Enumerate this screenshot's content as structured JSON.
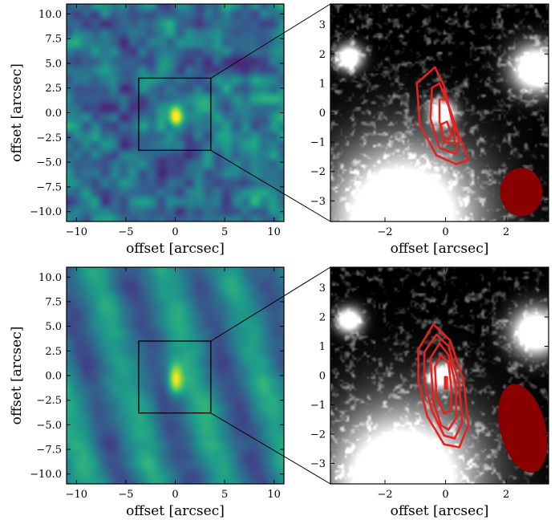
{
  "chart_data": [
    {
      "id": "top-left",
      "type": "heatmap",
      "colormap": "viridis",
      "pattern": "noise",
      "xlabel": "offset [arcsec]",
      "ylabel": "offset [arcsec]",
      "xlim": [
        -11,
        11
      ],
      "ylim": [
        -11,
        11
      ],
      "xticks": [
        -10,
        -5,
        0,
        5,
        10
      ],
      "xtick_labels": [
        "−10",
        "−5",
        "0",
        "5",
        "10"
      ],
      "yticks": [
        10,
        7.5,
        5,
        2.5,
        0,
        -2.5,
        -5,
        -7.5,
        -10
      ],
      "ytick_labels": [
        "10.0",
        "7.5",
        "5.0",
        "2.5",
        "0.0",
        "−2.5",
        "−5.0",
        "−7.5",
        "−10.0"
      ],
      "inset_box": {
        "x": [
          -3.7,
          3.6
        ],
        "y": [
          -3.8,
          3.5
        ]
      },
      "source_peak": {
        "x": 0,
        "y": -0.4
      }
    },
    {
      "id": "top-right",
      "type": "heatmap",
      "colormap": "gray",
      "xlabel": "offset [arcsec]",
      "ylabel": "",
      "xlim": [
        -3.8,
        3.4
      ],
      "ylim": [
        -3.7,
        3.7
      ],
      "xticks": [
        -2,
        0,
        2
      ],
      "xtick_labels": [
        "−2",
        "0",
        "2"
      ],
      "yticks": [
        3,
        2,
        1,
        0,
        -1,
        -2,
        -3
      ],
      "ytick_labels": [
        "3",
        "2",
        "1",
        "0",
        "−1",
        "−2",
        "−3"
      ],
      "contour_color": "#e8211f",
      "contours": [
        [
          [
            -0.95,
            1.0
          ],
          [
            -0.35,
            1.55
          ],
          [
            -0.05,
            0.9
          ],
          [
            0.2,
            -0.2
          ],
          [
            0.5,
            -0.9
          ],
          [
            0.75,
            -1.6
          ],
          [
            0.35,
            -1.75
          ],
          [
            -0.3,
            -1.45
          ],
          [
            -0.85,
            -0.4
          ]
        ],
        [
          [
            -0.45,
            0.85
          ],
          [
            -0.2,
            1.0
          ],
          [
            0.15,
            0.1
          ],
          [
            0.45,
            -0.8
          ],
          [
            0.35,
            -1.4
          ],
          [
            -0.2,
            -1.2
          ],
          [
            -0.5,
            -0.2
          ]
        ],
        [
          [
            -0.2,
            0.45
          ],
          [
            0.05,
            0.45
          ],
          [
            0.3,
            -0.6
          ],
          [
            0.3,
            -1.05
          ],
          [
            -0.05,
            -1.0
          ],
          [
            -0.2,
            -0.3
          ]
        ],
        [
          [
            -0.15,
            -0.4
          ],
          [
            0.05,
            -0.3
          ],
          [
            0.2,
            -0.75
          ],
          [
            0.1,
            -0.9
          ],
          [
            -0.1,
            -0.8
          ]
        ]
      ],
      "beam": {
        "x": 2.5,
        "y": -2.7,
        "w": 0.7,
        "h": 0.82,
        "angle": 0,
        "color": "#8a0000"
      },
      "blobs": [
        {
          "x": 3.0,
          "y": 1.5,
          "r": 0.55,
          "v": 1.0
        },
        {
          "x": -3.2,
          "y": 1.9,
          "r": 0.3,
          "v": 0.9
        },
        {
          "x": -1.4,
          "y": -3.6,
          "r": 1.7,
          "v": 1.0
        },
        {
          "x": -0.1,
          "y": 0.0,
          "r": 0.3,
          "v": 0.8
        }
      ]
    },
    {
      "id": "bottom-left",
      "type": "heatmap",
      "colormap": "viridis",
      "pattern": "stripes",
      "xlabel": "offset [arcsec]",
      "ylabel": "offset [arcsec]",
      "xlim": [
        -11,
        11
      ],
      "ylim": [
        -11,
        11
      ],
      "xticks": [
        -10,
        -5,
        0,
        5,
        10
      ],
      "xtick_labels": [
        "−10",
        "−5",
        "0",
        "5",
        "10"
      ],
      "yticks": [
        10,
        7.5,
        5,
        2.5,
        0,
        -2.5,
        -5,
        -7.5,
        -10
      ],
      "ytick_labels": [
        "10.0",
        "7.5",
        "5.0",
        "2.5",
        "0.0",
        "−2.5",
        "−5.0",
        "−7.5",
        "−10.0"
      ],
      "inset_box": {
        "x": [
          -3.7,
          3.6
        ],
        "y": [
          -3.8,
          3.5
        ]
      },
      "source_peak": {
        "x": 0,
        "y": -0.4
      }
    },
    {
      "id": "bottom-right",
      "type": "heatmap",
      "colormap": "gray",
      "xlabel": "offset [arcsec]",
      "ylabel": "",
      "xlim": [
        -3.8,
        3.4
      ],
      "ylim": [
        -3.7,
        3.7
      ],
      "xticks": [
        -2,
        0,
        2
      ],
      "xtick_labels": [
        "−2",
        "0",
        "2"
      ],
      "yticks": [
        3,
        2,
        1,
        0,
        -1,
        -2,
        -3
      ],
      "ytick_labels": [
        "3",
        "2",
        "1",
        "0",
        "−1",
        "−2",
        "−3"
      ],
      "contour_color": "#e8211f",
      "contours": [
        [
          [
            -0.9,
            0.9
          ],
          [
            -0.4,
            1.75
          ],
          [
            0.15,
            1.2
          ],
          [
            0.6,
            -0.2
          ],
          [
            0.75,
            -1.7
          ],
          [
            0.45,
            -2.45
          ],
          [
            -0.05,
            -2.35
          ],
          [
            -0.6,
            -1.4
          ],
          [
            -0.9,
            -0.2
          ]
        ],
        [
          [
            -0.7,
            0.8
          ],
          [
            -0.3,
            1.4
          ],
          [
            0.1,
            1.0
          ],
          [
            0.45,
            -0.3
          ],
          [
            0.55,
            -1.6
          ],
          [
            0.3,
            -2.15
          ],
          [
            -0.05,
            -2.05
          ],
          [
            -0.45,
            -1.2
          ],
          [
            -0.7,
            -0.2
          ]
        ],
        [
          [
            -0.5,
            0.6
          ],
          [
            -0.2,
            1.1
          ],
          [
            0.1,
            0.7
          ],
          [
            0.35,
            -0.4
          ],
          [
            0.35,
            -1.45
          ],
          [
            0.1,
            -1.85
          ],
          [
            -0.15,
            -1.7
          ],
          [
            -0.4,
            -0.9
          ]
        ],
        [
          [
            -0.35,
            0.3
          ],
          [
            -0.15,
            0.7
          ],
          [
            0.1,
            0.4
          ],
          [
            0.2,
            -0.5
          ],
          [
            0.15,
            -1.2
          ],
          [
            -0.05,
            -1.3
          ],
          [
            -0.3,
            -0.7
          ]
        ],
        [
          [
            -0.02,
            -0.05
          ],
          [
            0.05,
            -0.05
          ],
          [
            0.05,
            -0.45
          ],
          [
            -0.02,
            -0.45
          ]
        ]
      ],
      "beam": {
        "x": 2.55,
        "y": -1.8,
        "w": 0.75,
        "h": 1.55,
        "angle": -14,
        "color": "#8a0000"
      },
      "blobs": [
        {
          "x": 3.0,
          "y": 1.5,
          "r": 0.55,
          "v": 1.0
        },
        {
          "x": -3.2,
          "y": 1.9,
          "r": 0.3,
          "v": 0.9
        },
        {
          "x": -1.4,
          "y": -3.6,
          "r": 1.7,
          "v": 1.0
        },
        {
          "x": -0.1,
          "y": 0.0,
          "r": 0.3,
          "v": 0.8
        }
      ]
    }
  ]
}
